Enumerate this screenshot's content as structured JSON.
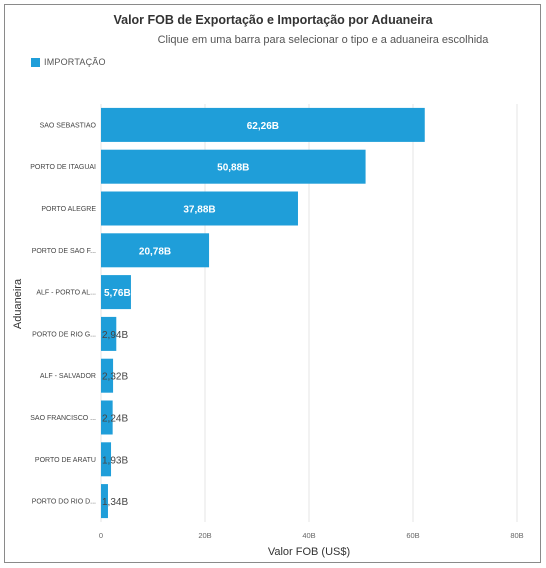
{
  "chart_data": {
    "type": "bar",
    "orientation": "horizontal",
    "title": "Valor FOB de Exportação e Importação por Aduaneira",
    "subtitle": "Clique em uma barra para selecionar o tipo e a aduaneira escolhida",
    "xlabel": "Valor FOB (US$)",
    "ylabel": "Aduaneira",
    "xlim": [
      0,
      80
    ],
    "x_ticks": [
      "0",
      "20B",
      "40B",
      "60B",
      "80B"
    ],
    "x_tick_values": [
      0,
      20,
      40,
      60,
      80
    ],
    "grid": true,
    "legend_position": "top-left",
    "categories": [
      "SAO SEBASTIAO",
      "PORTO DE ITAGUAI",
      "PORTO ALEGRE",
      "PORTO DE SAO F...",
      "ALF - PORTO AL...",
      "PORTO DE RIO G...",
      "ALF - SALVADOR",
      "SAO FRANCISCO ...",
      "PORTO DE ARATU",
      "PORTO DO RIO D..."
    ],
    "series": [
      {
        "name": "IMPORTAÇÃO",
        "color": "#1f9ed9",
        "values": [
          62.26,
          50.88,
          37.88,
          20.78,
          5.76,
          2.94,
          2.32,
          2.24,
          1.93,
          1.34
        ],
        "labels": [
          "62,26B",
          "50,88B",
          "37,88B",
          "20,78B",
          "5,76B",
          "2,94B",
          "2,32B",
          "2,24B",
          "1,93B",
          "1,34B"
        ]
      }
    ]
  }
}
